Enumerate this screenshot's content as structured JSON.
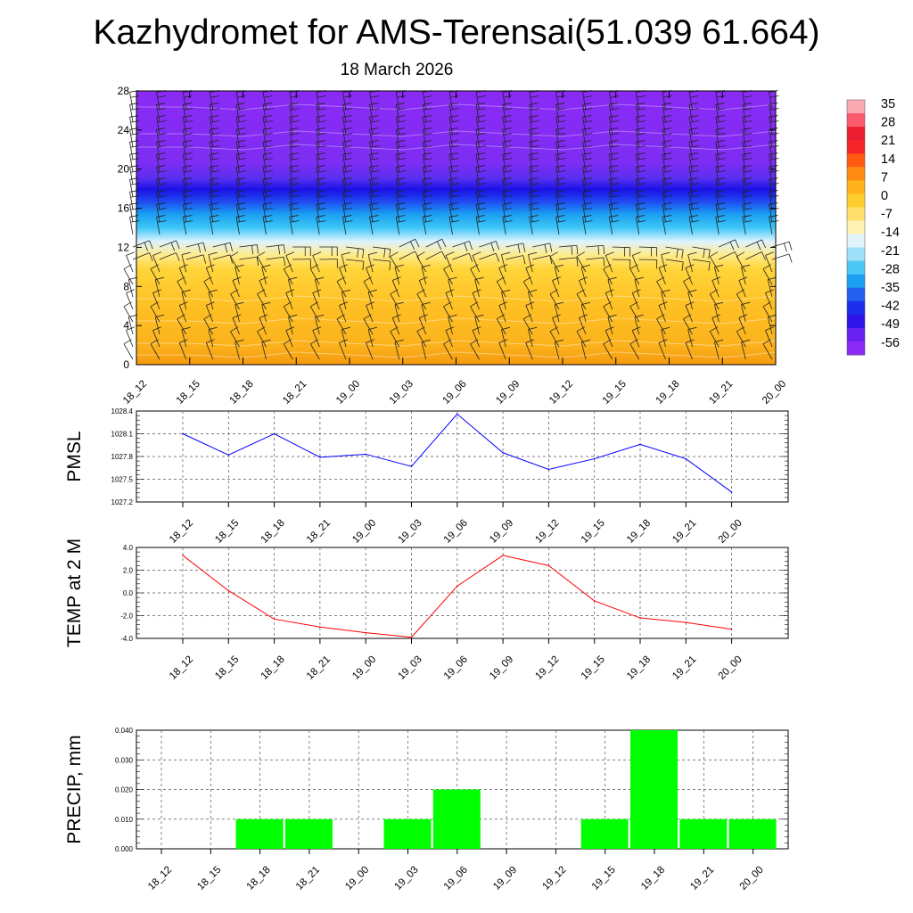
{
  "title": "Kazhydromet for AMS-Terensai(51.039 61.664)",
  "subtitle": "18 March 2026",
  "time_labels": [
    "18_12",
    "18_15",
    "18_18",
    "18_21",
    "19_00",
    "19_03",
    "19_06",
    "19_09",
    "19_12",
    "19_15",
    "19_18",
    "19_21",
    "20_00"
  ],
  "chart_data": [
    {
      "type": "heatmap",
      "name": "upper-air-temperature-and-wind",
      "x": [
        "18_12",
        "18_15",
        "18_18",
        "18_21",
        "19_00",
        "19_03",
        "19_06",
        "19_09",
        "19_12",
        "19_15",
        "19_18",
        "19_21",
        "20_00"
      ],
      "y_ticks": [
        0,
        4,
        8,
        12,
        16,
        20,
        24,
        28
      ],
      "ylim": [
        0,
        28
      ],
      "colorbar_labels": [
        "35",
        "28",
        "21",
        "14",
        "7",
        "0",
        "-7",
        "-14",
        "-21",
        "-28",
        "-35",
        "-42",
        "-49",
        "-56"
      ],
      "colors": {
        "warm": "#ffc125",
        "hot": "#f59a0f",
        "cold_top": "#8a2bf5",
        "cold_jet": "#1515e8",
        "cyan": "#18b6f2",
        "white": "#dff3ff",
        "barb": "#222222"
      }
    },
    {
      "type": "line",
      "name": "pmsl",
      "ylabel": "PMSL",
      "x": [
        "18_12",
        "18_15",
        "18_18",
        "18_21",
        "19_00",
        "19_03",
        "19_06",
        "19_09",
        "19_12",
        "19_15",
        "19_18",
        "19_21",
        "20_00"
      ],
      "values": [
        1028.1,
        1027.82,
        1028.1,
        1027.79,
        1027.83,
        1027.67,
        1028.36,
        1027.85,
        1027.63,
        1027.77,
        1027.96,
        1027.77,
        1027.33
      ],
      "yticks": [
        "1027.2",
        "1027.5",
        "1027.8",
        "1028.1",
        "1028.4"
      ],
      "ylim": [
        1027.2,
        1028.4
      ],
      "color": "#0000ff"
    },
    {
      "type": "line",
      "name": "temp-2m",
      "ylabel": "TEMP at 2 M",
      "x": [
        "18_12",
        "18_15",
        "18_18",
        "18_21",
        "19_00",
        "19_03",
        "19_06",
        "19_09",
        "19_12",
        "19_15",
        "19_18",
        "19_21",
        "20_00"
      ],
      "values": [
        3.3,
        0.2,
        -2.3,
        -3.0,
        -3.5,
        -3.9,
        0.6,
        3.3,
        2.4,
        -0.7,
        -2.2,
        -2.6,
        -3.2
      ],
      "yticks": [
        "-4.0",
        "-2.0",
        "0.0",
        "2.0",
        "4.0"
      ],
      "ylim": [
        -4,
        4
      ],
      "color": "#ff0000"
    },
    {
      "type": "bar",
      "name": "precip",
      "ylabel": "PRECIP, mm",
      "categories": [
        "18_12",
        "18_15",
        "18_18",
        "18_21",
        "19_00",
        "19_03",
        "19_06",
        "19_09",
        "19_12",
        "19_15",
        "19_18",
        "19_21",
        "20_00"
      ],
      "values": [
        0,
        0,
        0.01,
        0.01,
        0,
        0.01,
        0.02,
        0,
        0,
        0.01,
        0.04,
        0.01,
        0.01
      ],
      "yticks": [
        "0.000",
        "0.010",
        "0.020",
        "0.030",
        "0.040"
      ],
      "ylim": [
        0,
        0.04
      ],
      "color": "#00ff00"
    }
  ]
}
